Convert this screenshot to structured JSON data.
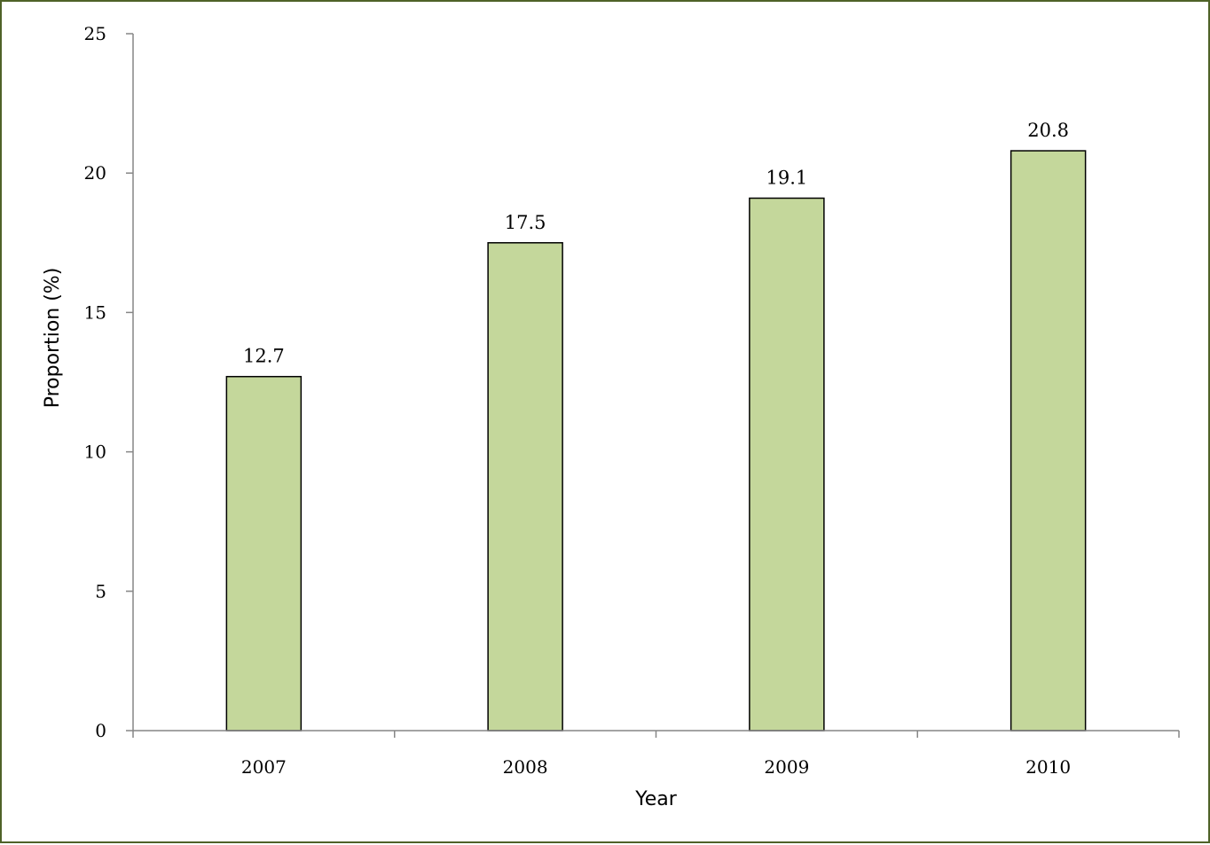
{
  "chart_data": {
    "type": "bar",
    "title": "",
    "xlabel": "Year",
    "ylabel": "Proportion (%)",
    "categories": [
      "2007",
      "2008",
      "2009",
      "2010"
    ],
    "values": [
      12.7,
      17.5,
      19.1,
      20.8
    ],
    "data_labels": [
      "12.7",
      "17.5",
      "19.1",
      "20.8"
    ],
    "ylim": [
      0,
      25
    ],
    "yticks": [
      "0",
      "5",
      "10",
      "15",
      "20",
      "25"
    ],
    "grid": false,
    "legend": "none",
    "colors": {
      "bar_fill": "#c4d79b",
      "bar_stroke": "#000000",
      "axis": "#868686",
      "frame": "#4f6228"
    }
  }
}
